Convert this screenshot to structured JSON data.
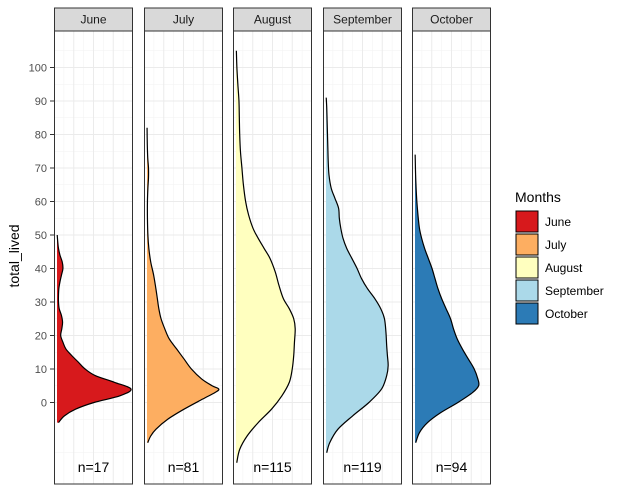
{
  "chart_data": {
    "type": "violin",
    "ylabel": "total_lived",
    "ylim": [
      -20,
      110
    ],
    "yticks": [
      0,
      10,
      20,
      30,
      40,
      50,
      60,
      70,
      80,
      90,
      100
    ],
    "legend": {
      "title": "Months",
      "position": "right"
    },
    "grid": true,
    "panels": [
      {
        "name": "June",
        "color": "#D7191C",
        "n_label": "n=17",
        "density": [
          [
            -6,
            0.02
          ],
          [
            -4,
            0.1
          ],
          [
            -2,
            0.25
          ],
          [
            0,
            0.5
          ],
          [
            2,
            0.85
          ],
          [
            4,
            1.0
          ],
          [
            6,
            0.78
          ],
          [
            8,
            0.52
          ],
          [
            10,
            0.38
          ],
          [
            12,
            0.29
          ],
          [
            14,
            0.2
          ],
          [
            16,
            0.12
          ],
          [
            18,
            0.08
          ],
          [
            20,
            0.05
          ],
          [
            22,
            0.065
          ],
          [
            24,
            0.075
          ],
          [
            26,
            0.06
          ],
          [
            28,
            0.03
          ],
          [
            30,
            0.02
          ],
          [
            32,
            0.02
          ],
          [
            34,
            0.025
          ],
          [
            36,
            0.04
          ],
          [
            38,
            0.06
          ],
          [
            40,
            0.08
          ],
          [
            42,
            0.07
          ],
          [
            44,
            0.04
          ],
          [
            46,
            0.02
          ],
          [
            48,
            0.01
          ],
          [
            50,
            0.003
          ]
        ]
      },
      {
        "name": "July",
        "color": "#FDAE61",
        "n_label": "n=81",
        "density": [
          [
            -12,
            0.01
          ],
          [
            -10,
            0.05
          ],
          [
            -8,
            0.12
          ],
          [
            -5,
            0.28
          ],
          [
            -2,
            0.5
          ],
          [
            1,
            0.75
          ],
          [
            3,
            0.92
          ],
          [
            4,
            0.97
          ],
          [
            5,
            0.88
          ],
          [
            7,
            0.74
          ],
          [
            10,
            0.6
          ],
          [
            13,
            0.5
          ],
          [
            16,
            0.4
          ],
          [
            19,
            0.3
          ],
          [
            22,
            0.24
          ],
          [
            25,
            0.19
          ],
          [
            28,
            0.16
          ],
          [
            31,
            0.14
          ],
          [
            34,
            0.12
          ],
          [
            38,
            0.09
          ],
          [
            42,
            0.05
          ],
          [
            46,
            0.025
          ],
          [
            50,
            0.012
          ],
          [
            55,
            0.006
          ],
          [
            60,
            0.006
          ],
          [
            64,
            0.012
          ],
          [
            67,
            0.02
          ],
          [
            70,
            0.02
          ],
          [
            73,
            0.01
          ],
          [
            77,
            0.004
          ],
          [
            82,
            0.001
          ]
        ]
      },
      {
        "name": "August",
        "color": "#FFFFBF",
        "n_label": "n=115",
        "density": [
          [
            -18,
            0.01
          ],
          [
            -14,
            0.05
          ],
          [
            -10,
            0.15
          ],
          [
            -6,
            0.3
          ],
          [
            -2,
            0.48
          ],
          [
            2,
            0.62
          ],
          [
            6,
            0.72
          ],
          [
            10,
            0.76
          ],
          [
            14,
            0.78
          ],
          [
            18,
            0.79
          ],
          [
            22,
            0.8
          ],
          [
            25,
            0.78
          ],
          [
            28,
            0.72
          ],
          [
            31,
            0.64
          ],
          [
            35,
            0.58
          ],
          [
            39,
            0.53
          ],
          [
            43,
            0.46
          ],
          [
            46,
            0.38
          ],
          [
            49,
            0.3
          ],
          [
            52,
            0.23
          ],
          [
            56,
            0.17
          ],
          [
            60,
            0.13
          ],
          [
            65,
            0.1
          ],
          [
            70,
            0.08
          ],
          [
            75,
            0.06
          ],
          [
            80,
            0.05
          ],
          [
            85,
            0.045
          ],
          [
            90,
            0.04
          ],
          [
            95,
            0.025
          ],
          [
            100,
            0.012
          ],
          [
            105,
            0.005
          ]
        ]
      },
      {
        "name": "September",
        "color": "#ABD9E9",
        "n_label": "n=119",
        "density": [
          [
            -15,
            0.01
          ],
          [
            -12,
            0.05
          ],
          [
            -8,
            0.16
          ],
          [
            -4,
            0.36
          ],
          [
            0,
            0.58
          ],
          [
            4,
            0.75
          ],
          [
            8,
            0.82
          ],
          [
            11,
            0.84
          ],
          [
            14,
            0.83
          ],
          [
            17,
            0.82
          ],
          [
            21,
            0.81
          ],
          [
            25,
            0.79
          ],
          [
            28,
            0.74
          ],
          [
            31,
            0.66
          ],
          [
            34,
            0.56
          ],
          [
            37,
            0.48
          ],
          [
            40,
            0.42
          ],
          [
            43,
            0.35
          ],
          [
            46,
            0.28
          ],
          [
            49,
            0.23
          ],
          [
            52,
            0.2
          ],
          [
            55,
            0.18
          ],
          [
            58,
            0.17
          ],
          [
            61,
            0.12
          ],
          [
            64,
            0.07
          ],
          [
            68,
            0.04
          ],
          [
            72,
            0.03
          ],
          [
            76,
            0.025
          ],
          [
            80,
            0.02
          ],
          [
            84,
            0.015
          ],
          [
            88,
            0.01
          ],
          [
            91,
            0.003
          ]
        ]
      },
      {
        "name": "October",
        "color": "#2C7BB6",
        "n_label": "n=94",
        "density": [
          [
            -12,
            0.01
          ],
          [
            -9,
            0.06
          ],
          [
            -6,
            0.17
          ],
          [
            -3,
            0.35
          ],
          [
            0,
            0.58
          ],
          [
            3,
            0.78
          ],
          [
            5,
            0.86
          ],
          [
            7,
            0.85
          ],
          [
            10,
            0.8
          ],
          [
            13,
            0.72
          ],
          [
            16,
            0.64
          ],
          [
            19,
            0.57
          ],
          [
            22,
            0.52
          ],
          [
            25,
            0.48
          ],
          [
            28,
            0.42
          ],
          [
            31,
            0.36
          ],
          [
            34,
            0.31
          ],
          [
            37,
            0.27
          ],
          [
            40,
            0.23
          ],
          [
            43,
            0.18
          ],
          [
            46,
            0.13
          ],
          [
            49,
            0.09
          ],
          [
            52,
            0.06
          ],
          [
            56,
            0.04
          ],
          [
            60,
            0.025
          ],
          [
            64,
            0.015
          ],
          [
            68,
            0.008
          ],
          [
            72,
            0.004
          ],
          [
            74,
            0.002
          ]
        ]
      }
    ]
  }
}
